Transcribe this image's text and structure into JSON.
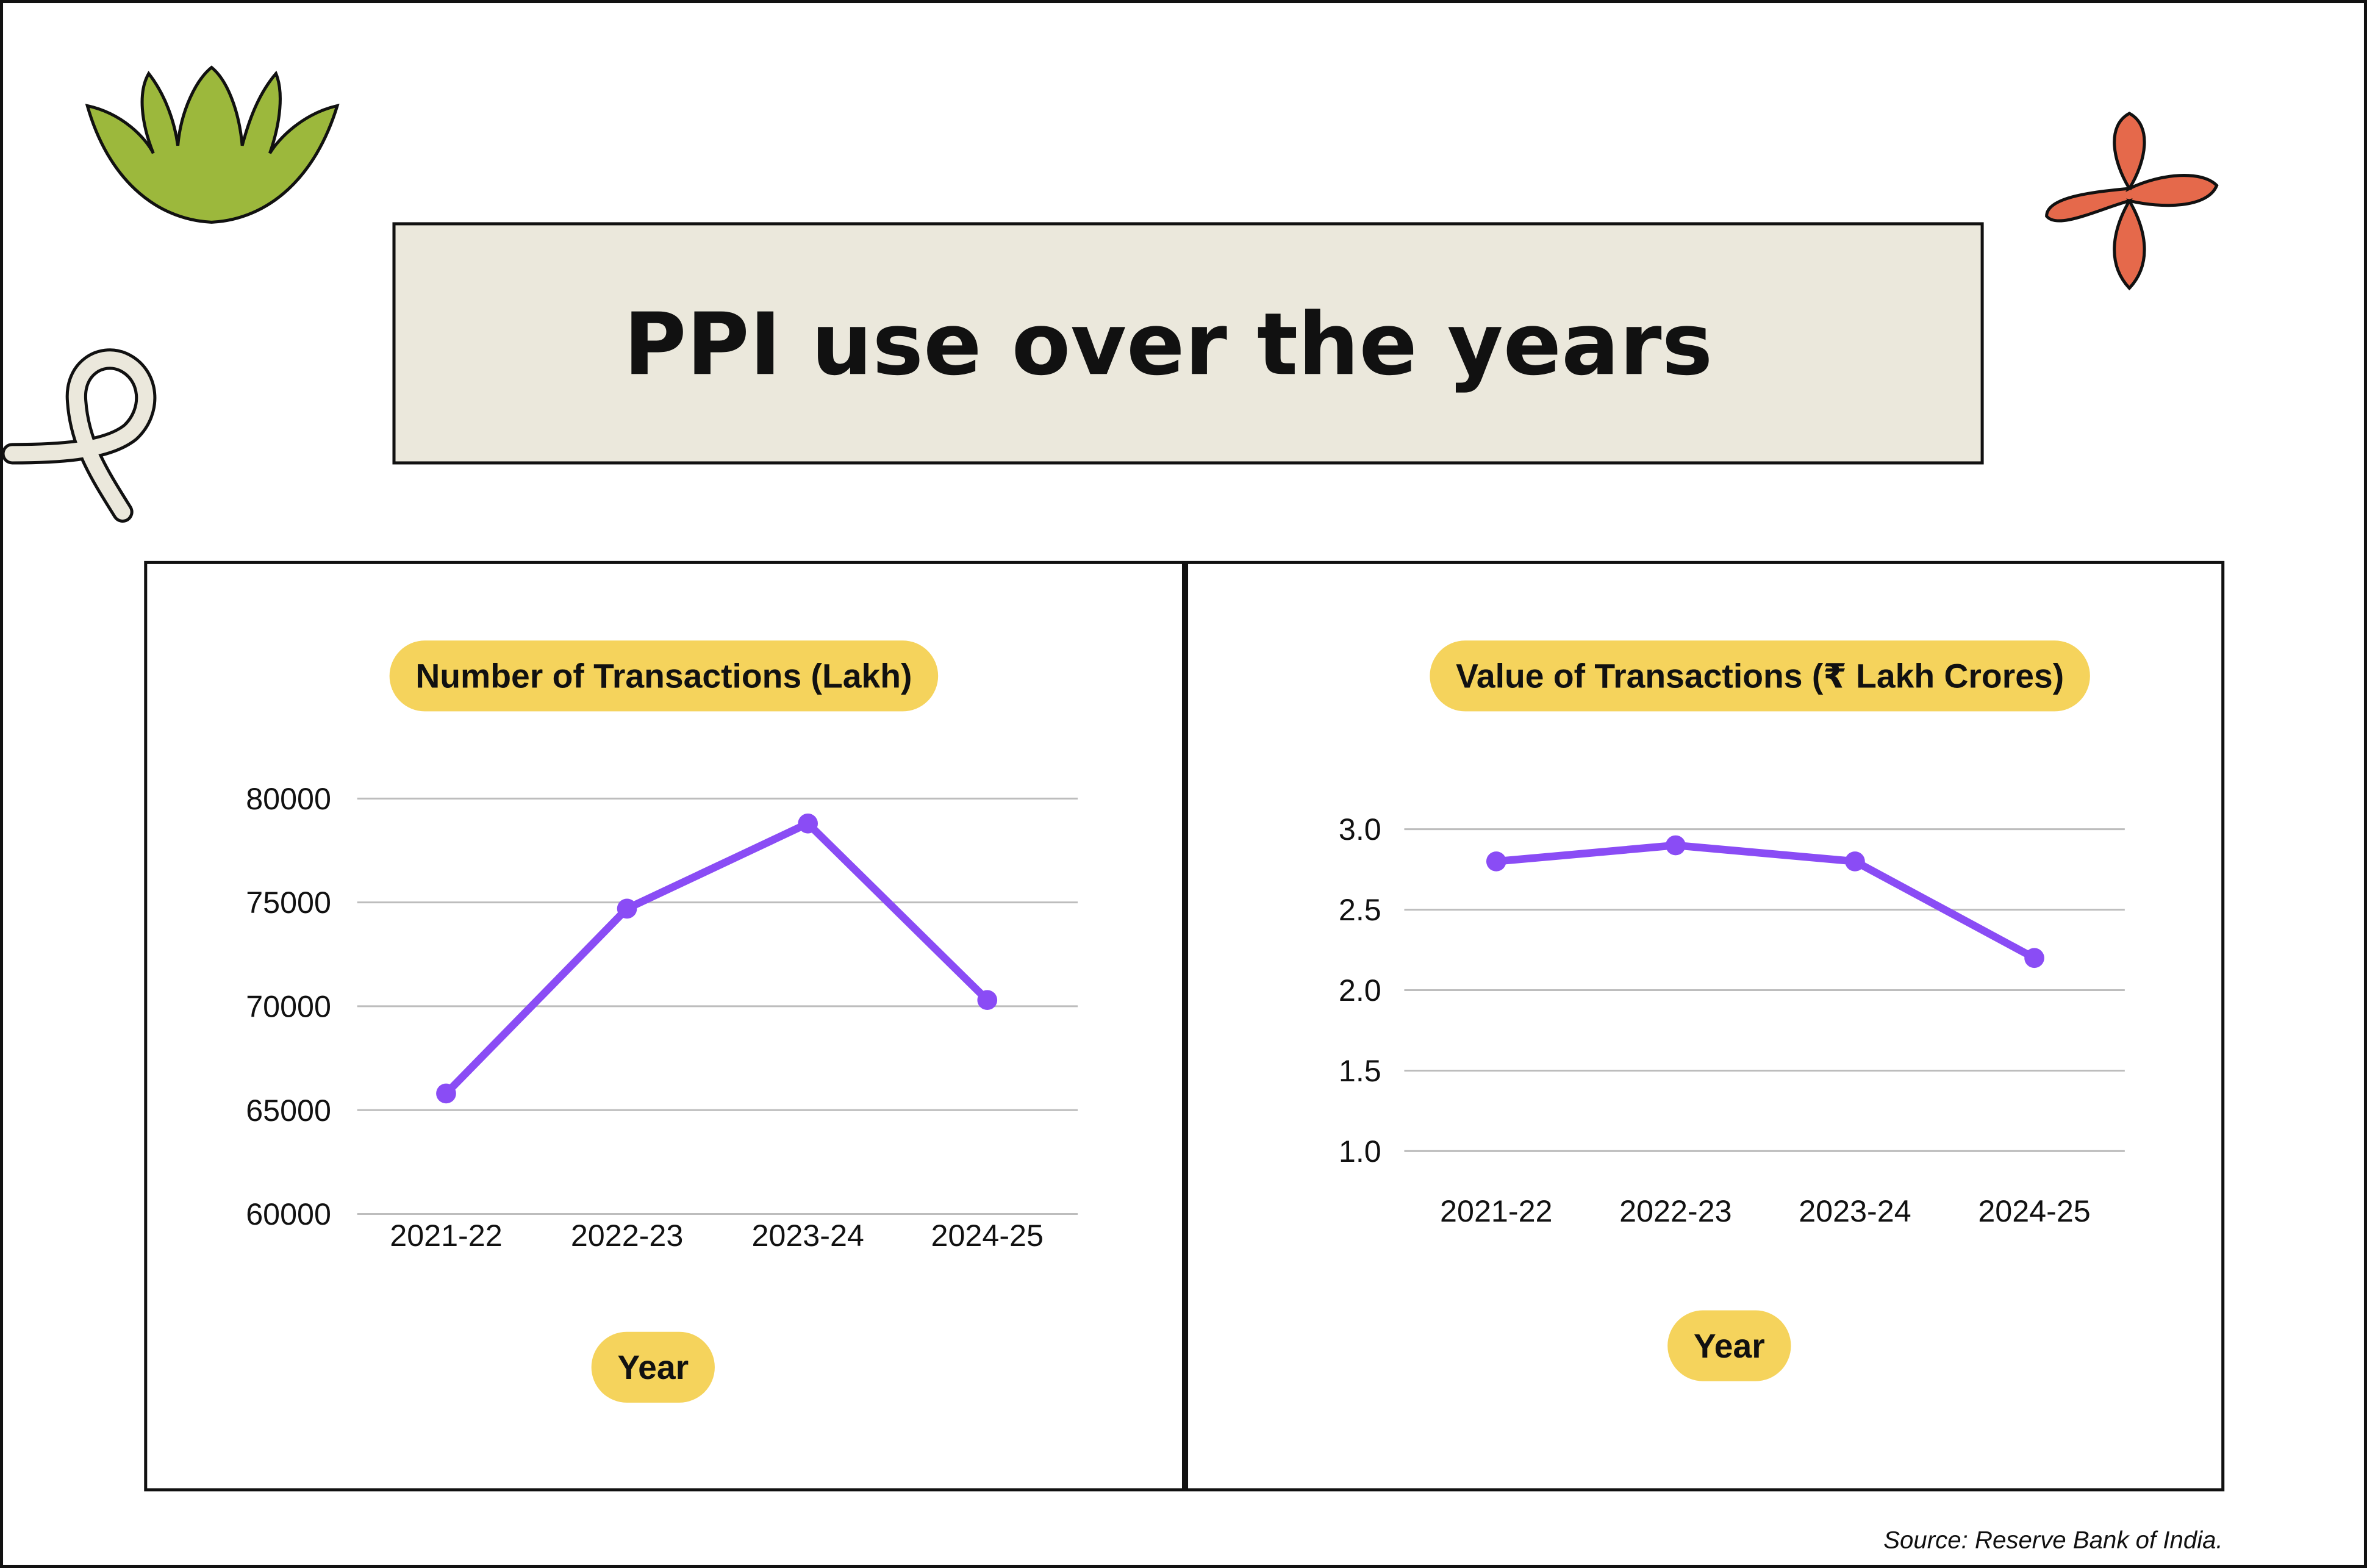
{
  "page": {
    "title": "PPI use over the years",
    "source_note": "Source: Reserve Bank of India."
  },
  "colors": {
    "background": "#ffffff",
    "title_box": "#ebe8dc",
    "pill": "#f5d35c",
    "line": "#8a4cf5",
    "grid": "#bdbdbd",
    "text": "#111111",
    "leaf_decoration": "#9cb83c",
    "flower_decoration": "#e5694b",
    "loop_decoration": "#ebe8dc"
  },
  "decorations": [
    "leaf-icon",
    "flower-icon",
    "loop-icon"
  ],
  "chart_data": [
    {
      "type": "line",
      "title": "Number of Transactions (Lakh)",
      "xlabel": "Year",
      "ylabel": "",
      "categories": [
        "2021-22",
        "2022-23",
        "2023-24",
        "2024-25"
      ],
      "values": [
        65800,
        74700,
        78800,
        70300
      ],
      "ylim": [
        60000,
        80000
      ],
      "yticks": [
        "60000",
        "65000",
        "70000",
        "75000",
        "80000"
      ],
      "grid": true,
      "legend": "none"
    },
    {
      "type": "line",
      "title": "Value of Transactions (₹ Lakh Crores)",
      "xlabel": "Year",
      "ylabel": "",
      "categories": [
        "2021-22",
        "2022-23",
        "2023-24",
        "2024-25"
      ],
      "values": [
        2.8,
        2.9,
        2.8,
        2.2
      ],
      "ylim": [
        1.0,
        3.0
      ],
      "yticks": [
        "1.0",
        "1.5",
        "2.0",
        "2.5",
        "3.0"
      ],
      "grid": true,
      "legend": "none"
    }
  ]
}
